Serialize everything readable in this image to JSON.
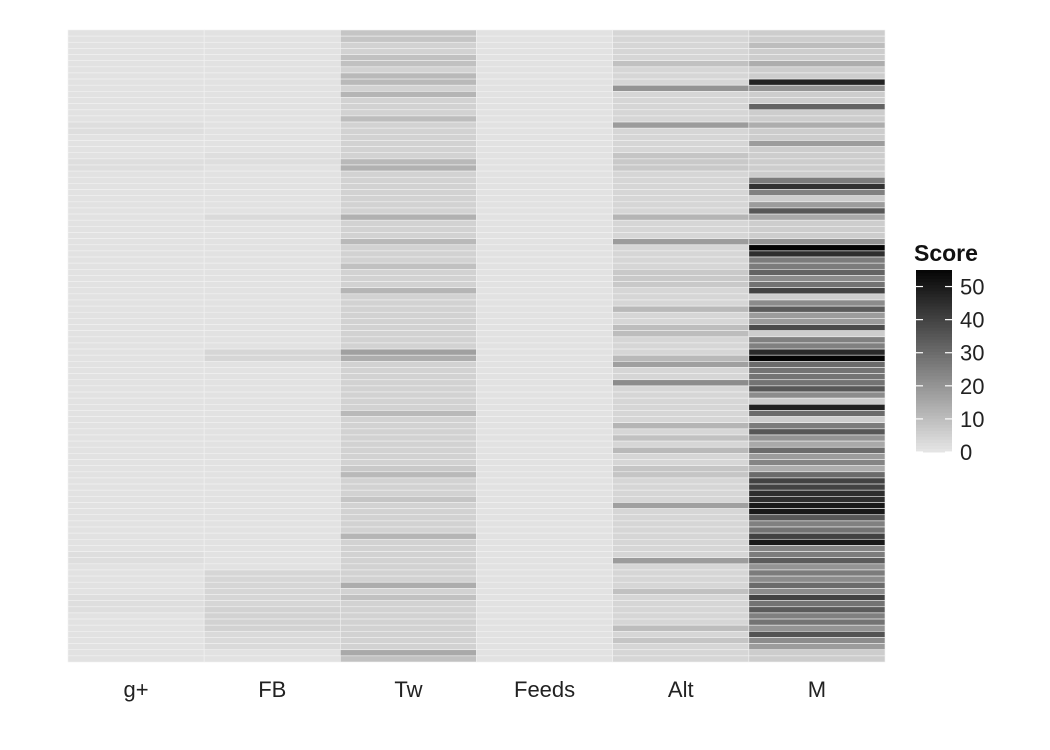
{
  "chart_data": {
    "type": "heatmap",
    "title": "",
    "xlabel": "",
    "ylabel": "",
    "categories": [
      "g+",
      "FB",
      "Tw",
      "Feeds",
      "Alt",
      "M"
    ],
    "rows": 103,
    "legend": {
      "title": "Score",
      "placement": "right",
      "ticks": [
        0,
        10,
        20,
        30,
        40,
        50
      ],
      "range": [
        0,
        55
      ]
    },
    "colors": {
      "low": "#e6e6e6",
      "high": "#050505",
      "grid": "#f2f2f2"
    },
    "columns": [
      {
        "name": "g+",
        "rows": [
          [
            0,
            103,
            1
          ],
          [
            15,
            17,
            2
          ],
          [
            21,
            23,
            2
          ],
          [
            40,
            42,
            1
          ],
          [
            60,
            62,
            1
          ],
          [
            85,
            87,
            2
          ],
          [
            92,
            95,
            2
          ]
        ]
      },
      {
        "name": "FB",
        "rows": [
          [
            0,
            103,
            1
          ],
          [
            20,
            22,
            2
          ],
          [
            30,
            31,
            3
          ],
          [
            52,
            54,
            4
          ],
          [
            88,
            94,
            4
          ],
          [
            94,
            98,
            5
          ],
          [
            98,
            101,
            3
          ]
        ]
      },
      {
        "name": "Tw",
        "rows": [
          [
            0,
            103,
            5
          ],
          [
            0,
            2,
            8
          ],
          [
            4,
            6,
            9
          ],
          [
            7,
            9,
            11
          ],
          [
            10,
            11,
            12
          ],
          [
            14,
            15,
            10
          ],
          [
            21,
            22,
            11
          ],
          [
            22,
            23,
            13
          ],
          [
            30,
            31,
            13
          ],
          [
            34,
            35,
            11
          ],
          [
            38,
            39,
            9
          ],
          [
            42,
            43,
            12
          ],
          [
            52,
            53,
            17
          ],
          [
            53,
            54,
            14
          ],
          [
            62,
            63,
            11
          ],
          [
            71,
            72,
            7
          ],
          [
            72,
            73,
            11
          ],
          [
            76,
            77,
            8
          ],
          [
            82,
            83,
            12
          ],
          [
            90,
            91,
            14
          ],
          [
            92,
            93,
            9
          ],
          [
            101,
            102,
            15
          ],
          [
            102,
            103,
            9
          ]
        ]
      },
      {
        "name": "Feeds",
        "rows": [
          [
            0,
            103,
            1
          ]
        ]
      },
      {
        "name": "Alt",
        "rows": [
          [
            0,
            103,
            4
          ],
          [
            5,
            6,
            9
          ],
          [
            9,
            10,
            20
          ],
          [
            15,
            16,
            18
          ],
          [
            20,
            21,
            8
          ],
          [
            21,
            23,
            7
          ],
          [
            30,
            31,
            12
          ],
          [
            34,
            35,
            18
          ],
          [
            39,
            42,
            7
          ],
          [
            45,
            46,
            11
          ],
          [
            48,
            50,
            10
          ],
          [
            53,
            54,
            11
          ],
          [
            54,
            55,
            17
          ],
          [
            57,
            58,
            22
          ],
          [
            64,
            65,
            12
          ],
          [
            66,
            67,
            9
          ],
          [
            68,
            69,
            11
          ],
          [
            71,
            73,
            8
          ],
          [
            77,
            78,
            17
          ],
          [
            86,
            87,
            18
          ],
          [
            91,
            92,
            9
          ],
          [
            97,
            98,
            10
          ],
          [
            99,
            100,
            8
          ]
        ]
      },
      {
        "name": "M",
        "rows": [
          [
            0,
            103,
            6
          ],
          [
            2,
            3,
            10
          ],
          [
            5,
            6,
            14
          ],
          [
            8,
            9,
            48
          ],
          [
            9,
            10,
            20
          ],
          [
            12,
            13,
            32
          ],
          [
            15,
            16,
            14
          ],
          [
            18,
            19,
            18
          ],
          [
            24,
            25,
            26
          ],
          [
            25,
            26,
            44
          ],
          [
            26,
            27,
            25
          ],
          [
            28,
            29,
            18
          ],
          [
            29,
            30,
            35
          ],
          [
            30,
            31,
            15
          ],
          [
            34,
            35,
            20
          ],
          [
            35,
            36,
            55
          ],
          [
            36,
            37,
            45
          ],
          [
            37,
            39,
            26
          ],
          [
            39,
            40,
            32
          ],
          [
            40,
            41,
            22
          ],
          [
            41,
            42,
            28
          ],
          [
            42,
            43,
            40
          ],
          [
            44,
            45,
            22
          ],
          [
            45,
            46,
            34
          ],
          [
            46,
            48,
            18
          ],
          [
            48,
            49,
            38
          ],
          [
            50,
            52,
            25
          ],
          [
            52,
            53,
            46
          ],
          [
            53,
            54,
            55
          ],
          [
            54,
            55,
            30
          ],
          [
            55,
            58,
            28
          ],
          [
            58,
            59,
            35
          ],
          [
            59,
            60,
            22
          ],
          [
            61,
            62,
            48
          ],
          [
            62,
            63,
            30
          ],
          [
            64,
            65,
            26
          ],
          [
            65,
            66,
            35
          ],
          [
            66,
            67,
            20
          ],
          [
            67,
            68,
            15
          ],
          [
            68,
            69,
            30
          ],
          [
            69,
            70,
            18
          ],
          [
            70,
            71,
            24
          ],
          [
            71,
            72,
            14
          ],
          [
            72,
            73,
            30
          ],
          [
            73,
            75,
            40
          ],
          [
            75,
            77,
            45
          ],
          [
            77,
            79,
            50
          ],
          [
            79,
            80,
            35
          ],
          [
            80,
            81,
            25
          ],
          [
            81,
            82,
            18
          ],
          [
            81,
            82,
            28
          ],
          [
            82,
            83,
            40
          ],
          [
            83,
            84,
            50
          ],
          [
            84,
            85,
            24
          ],
          [
            85,
            86,
            26
          ],
          [
            86,
            87,
            34
          ],
          [
            87,
            88,
            20
          ],
          [
            88,
            89,
            26
          ],
          [
            89,
            90,
            22
          ],
          [
            90,
            91,
            30
          ],
          [
            91,
            92,
            22
          ],
          [
            92,
            93,
            40
          ],
          [
            93,
            94,
            28
          ],
          [
            94,
            95,
            34
          ],
          [
            95,
            96,
            25
          ],
          [
            96,
            97,
            28
          ],
          [
            97,
            98,
            20
          ],
          [
            98,
            99,
            36
          ],
          [
            99,
            100,
            22
          ],
          [
            100,
            101,
            18
          ]
        ]
      }
    ]
  }
}
